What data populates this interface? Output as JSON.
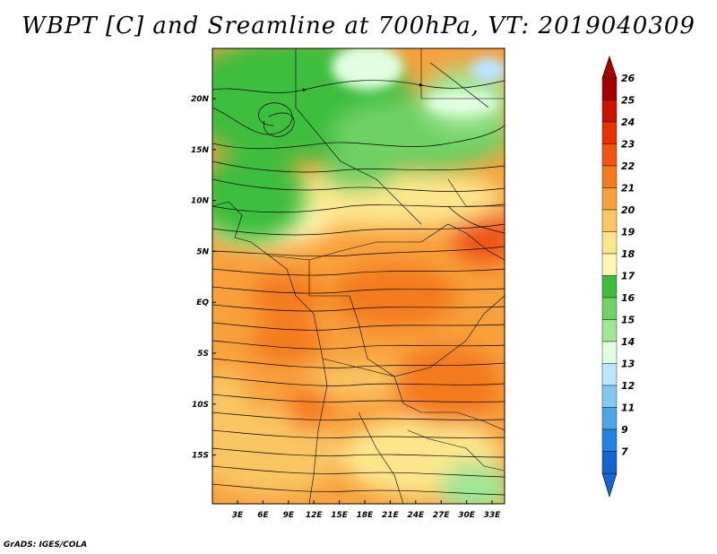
{
  "title": "WBPT [C] and Sreamline at 700hPa, VT: 2019040309",
  "credit": "GrADS: IGES/COLA",
  "map": {
    "lat_labels": [
      "20N",
      "15N",
      "10N",
      "5N",
      "EQ",
      "5S",
      "10S",
      "15S"
    ],
    "lon_labels": [
      "3E",
      "6E",
      "9E",
      "12E",
      "15E",
      "18E",
      "21E",
      "24E",
      "27E",
      "30E",
      "33E"
    ]
  },
  "colorbar": {
    "levels": [
      "26",
      "25",
      "24",
      "23",
      "22",
      "21",
      "20",
      "19",
      "18",
      "17",
      "16",
      "15",
      "14",
      "13",
      "12",
      "11",
      "9",
      "7"
    ],
    "colors": [
      "#a50000",
      "#c81400",
      "#e63200",
      "#f05514",
      "#f47a1e",
      "#f8a03c",
      "#fac564",
      "#fce68c",
      "#fff5b4",
      "#3cbe3c",
      "#6ed264",
      "#a0e696",
      "#e1ffe1",
      "#bae6ff",
      "#82c8f0",
      "#50a5e6",
      "#2882e1",
      "#1464d2"
    ],
    "top_color": "#a50000",
    "bottom_color": "#1464d2"
  }
}
